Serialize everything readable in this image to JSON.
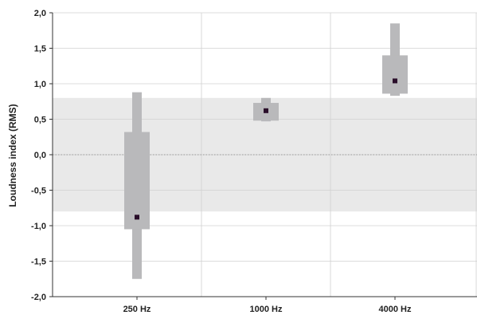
{
  "chart_data": {
    "type": "boxplot",
    "title": "",
    "xlabel": "",
    "ylabel": "Loudness index (RMS)",
    "ylim": [
      -2.0,
      2.0
    ],
    "y_ticks": [
      "-2,0",
      "-1,5",
      "-1,0",
      "-0,5",
      "0,0",
      "0,5",
      "1,0",
      "1,5",
      "2,0"
    ],
    "y_tick_values": [
      -2.0,
      -1.5,
      -1.0,
      -0.5,
      0.0,
      0.5,
      1.0,
      1.5,
      2.0
    ],
    "categories": [
      "250 Hz",
      "1000 Hz",
      "4000 Hz"
    ],
    "reference_band": [
      -0.8,
      0.8
    ],
    "reference_line": 0.0,
    "grid": true,
    "boxes": [
      {
        "category": "250 Hz",
        "whisker_low": -1.75,
        "q1": -1.05,
        "median": -0.88,
        "q3": 0.32,
        "whisker_high": 0.88
      },
      {
        "category": "1000 Hz",
        "whisker_low": 0.47,
        "q1": 0.48,
        "median": 0.62,
        "q3": 0.73,
        "whisker_high": 0.8
      },
      {
        "category": "4000 Hz",
        "whisker_low": 0.83,
        "q1": 0.86,
        "median": 1.04,
        "q3": 1.4,
        "whisker_high": 1.85
      }
    ],
    "colors": {
      "box": "#b9b9bb",
      "band": "#e9e9e9",
      "median": "#2a0e2a",
      "grid": "#d0d0d0"
    }
  }
}
